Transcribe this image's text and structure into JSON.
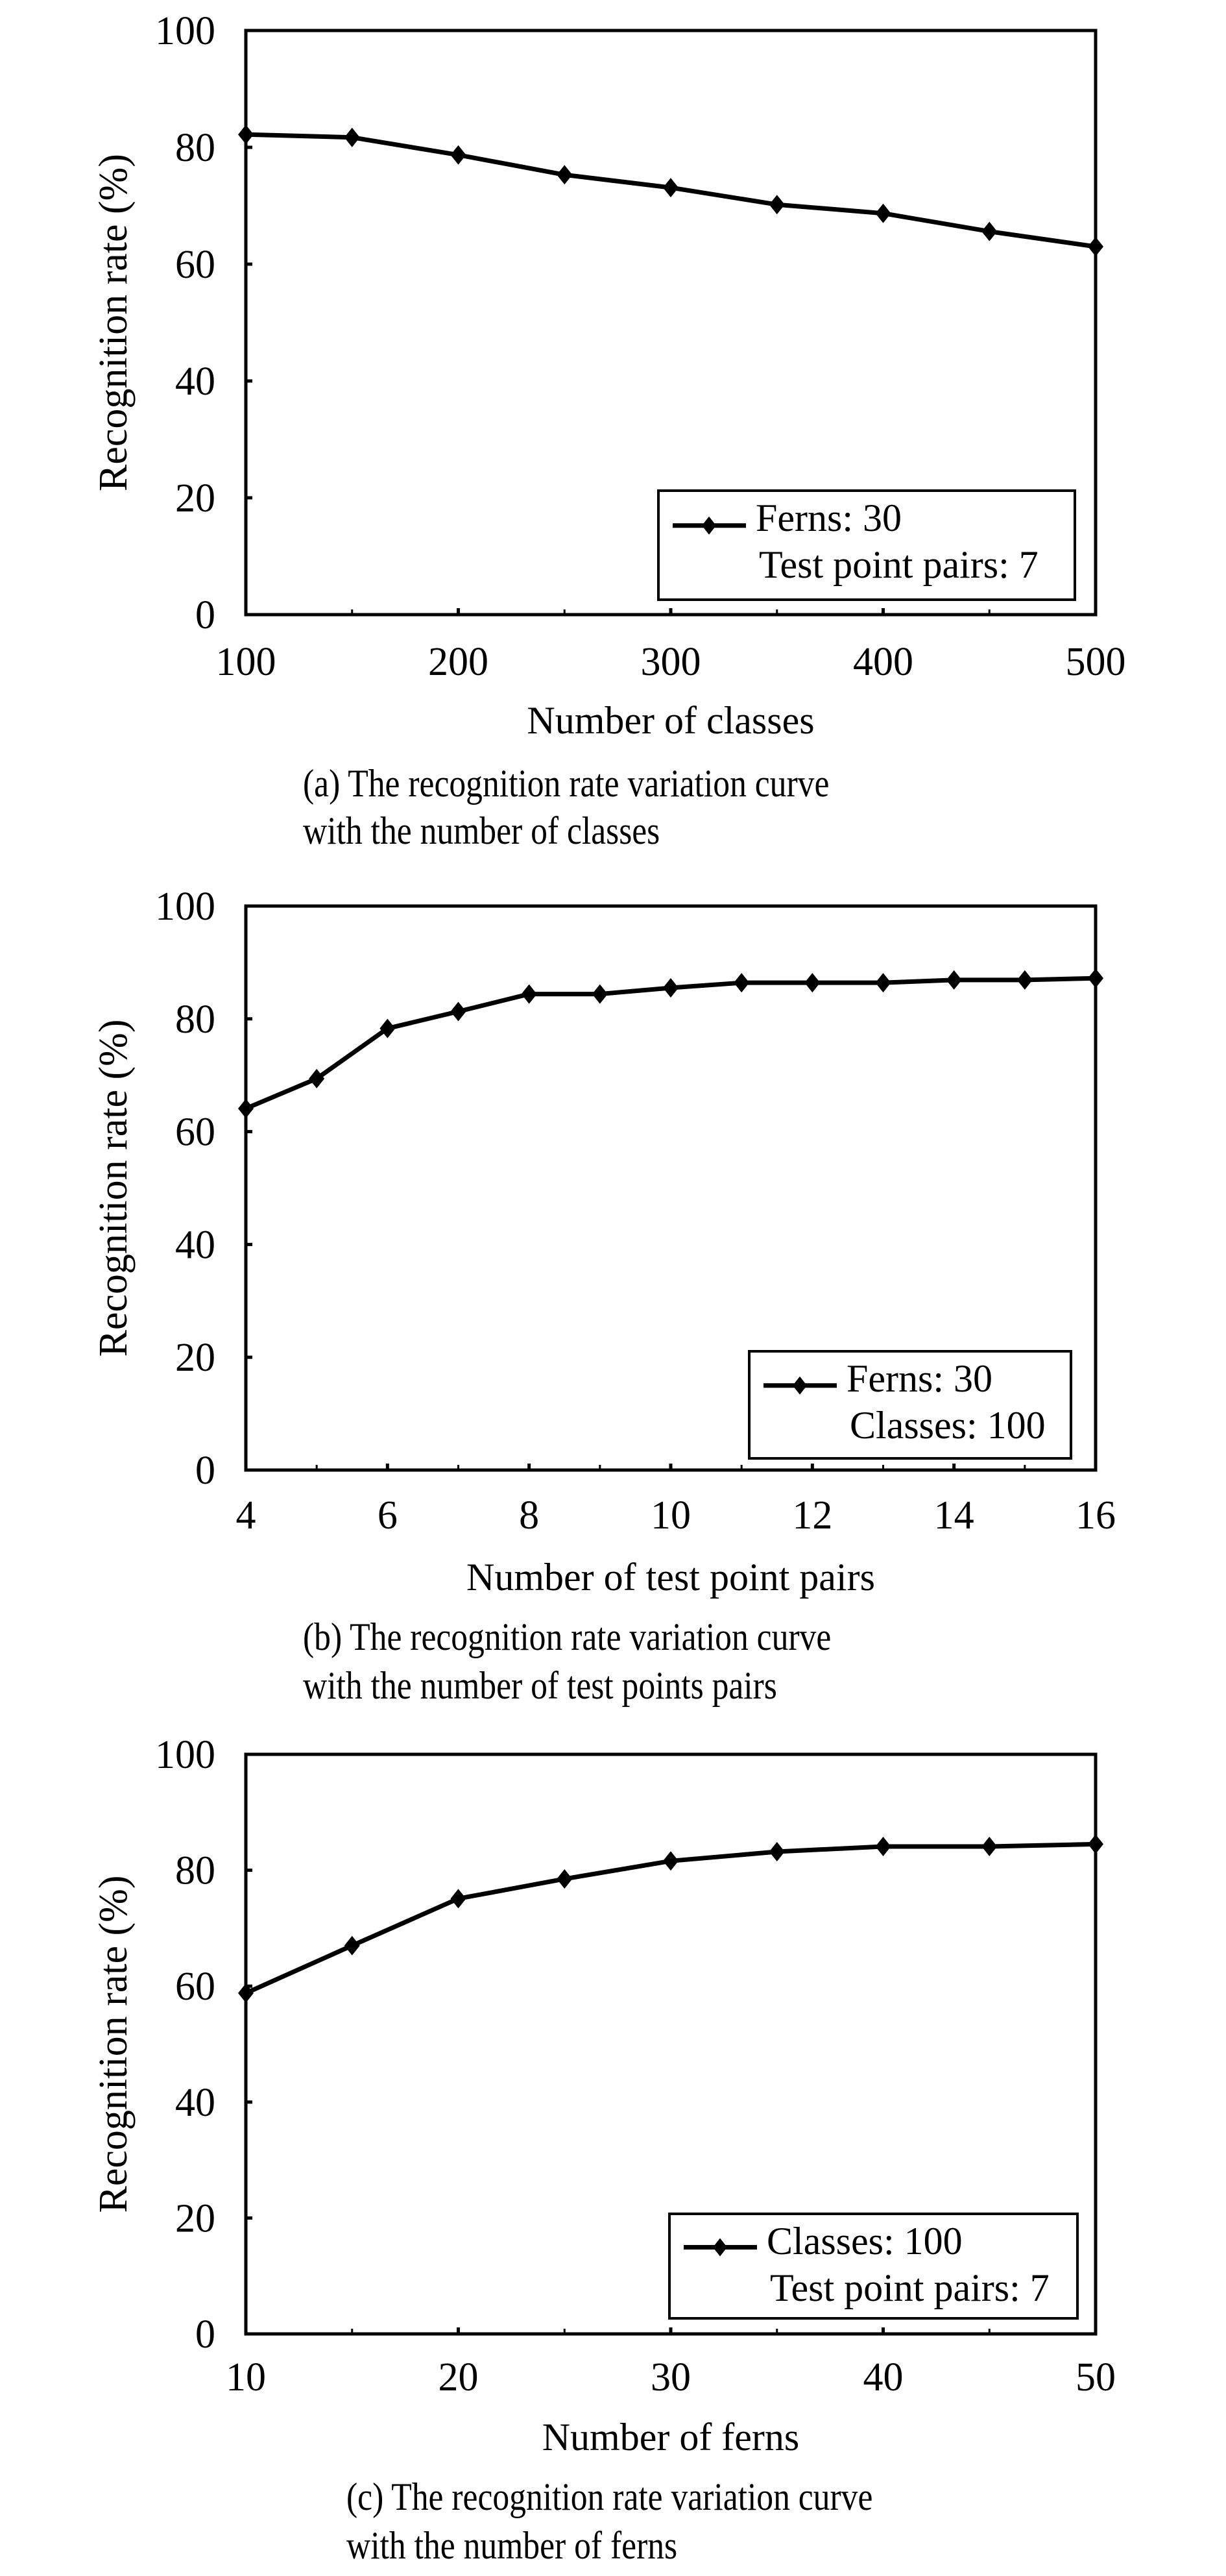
{
  "figure": {
    "panels": [
      {
        "id": "a",
        "caption_line1": "(a) The recognition rate variation curve",
        "caption_line2": "with the number of classes"
      },
      {
        "id": "b",
        "caption_line1": "(b) The recognition rate variation curve",
        "caption_line2": "with the number of test points pairs"
      },
      {
        "id": "c",
        "caption_line1": "(c) The recognition rate variation curve",
        "caption_line2": "with the number of ferns"
      }
    ]
  },
  "style": {
    "line_color": "#000000",
    "marker": "diamond",
    "background": "#ffffff"
  },
  "chart_data": [
    {
      "type": "line",
      "title": "",
      "xlabel": "Number of classes",
      "ylabel": "Recognition rate (%)",
      "x": [
        100,
        150,
        200,
        250,
        300,
        350,
        400,
        450,
        500
      ],
      "series": [
        {
          "name": "Ferns: 30",
          "values": [
            82.2,
            81.7,
            78.7,
            75.3,
            73.1,
            70.2,
            68.7,
            65.6,
            63.0
          ]
        }
      ],
      "legend": [
        "Ferns: 30",
        "Test point pairs: 7"
      ],
      "legend_position": "lower right",
      "xticks": [
        100,
        200,
        300,
        400,
        500
      ],
      "yticks": [
        0,
        20,
        40,
        60,
        80,
        100
      ],
      "xlim": [
        100,
        500
      ],
      "ylim": [
        0,
        100
      ],
      "grid": false
    },
    {
      "type": "line",
      "title": "",
      "xlabel": "Number of test point pairs",
      "ylabel": "Recognition rate (%)",
      "x": [
        4,
        5,
        6,
        7,
        8,
        9,
        10,
        11,
        12,
        13,
        14,
        15,
        16
      ],
      "series": [
        {
          "name": "Ferns: 30",
          "values": [
            64.1,
            69.4,
            78.3,
            81.3,
            84.4,
            84.4,
            85.5,
            86.4,
            86.4,
            86.4,
            86.9,
            86.9,
            87.2
          ]
        }
      ],
      "legend": [
        "Ferns: 30",
        "Classes: 100"
      ],
      "legend_position": "lower right",
      "xticks": [
        4,
        6,
        8,
        10,
        12,
        14,
        16
      ],
      "yticks": [
        0,
        20,
        40,
        60,
        80,
        100
      ],
      "xlim": [
        4,
        16
      ],
      "ylim": [
        0,
        100
      ],
      "grid": false
    },
    {
      "type": "line",
      "title": "",
      "xlabel": "Number of ferns",
      "ylabel": "Recognition rate (%)",
      "x": [
        10,
        15,
        20,
        25,
        30,
        35,
        40,
        45,
        50
      ],
      "series": [
        {
          "name": "Classes: 100",
          "values": [
            58.8,
            67.0,
            75.1,
            78.5,
            81.6,
            83.2,
            84.1,
            84.1,
            84.5
          ]
        }
      ],
      "legend": [
        "Classes: 100",
        "Test point pairs: 7"
      ],
      "legend_position": "lower right",
      "xticks": [
        10,
        20,
        30,
        40,
        50
      ],
      "yticks": [
        0,
        20,
        40,
        60,
        80,
        100
      ],
      "xlim": [
        10,
        50
      ],
      "ylim": [
        0,
        100
      ],
      "grid": false
    }
  ]
}
